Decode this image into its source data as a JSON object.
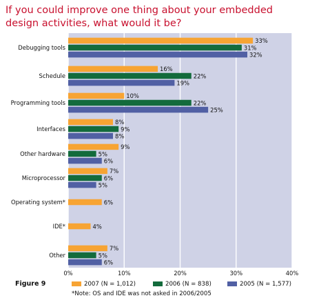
{
  "title": "If you could improve one thing about your embedded design activities, what would it be?",
  "figure_label": "Figure 9",
  "note": "*Note: OS and IDE was not asked in 2006/2005",
  "colors": {
    "s2007": "#f7a433",
    "s2006": "#136b3c",
    "s2005": "#5160a4",
    "plot_bg": "#cfd2e6",
    "grid": "#ffffff",
    "title": "#c8102e"
  },
  "chart_data": {
    "type": "bar",
    "orientation": "horizontal",
    "categories": [
      "Debugging tools",
      "Schedule",
      "Programming tools",
      "Interfaces",
      "Other hardware",
      "Microprocessor",
      "Operating system*",
      "IDE*",
      "Other"
    ],
    "series": [
      {
        "name": "2007 (N = 1,012)",
        "values": [
          33,
          16,
          10,
          8,
          9,
          7,
          6,
          4,
          7
        ]
      },
      {
        "name": "2006 (N = 838)",
        "values": [
          31,
          22,
          22,
          9,
          5,
          6,
          null,
          null,
          5
        ]
      },
      {
        "name": "2005 (N = 1,577)",
        "values": [
          32,
          19,
          25,
          8,
          6,
          5,
          null,
          null,
          6
        ]
      }
    ],
    "x_ticks": [
      "0%",
      "10%",
      "20%",
      "30%",
      "40%"
    ],
    "xlim": [
      0,
      40
    ],
    "value_suffix": "%",
    "grid": true,
    "legend_position": "bottom"
  }
}
